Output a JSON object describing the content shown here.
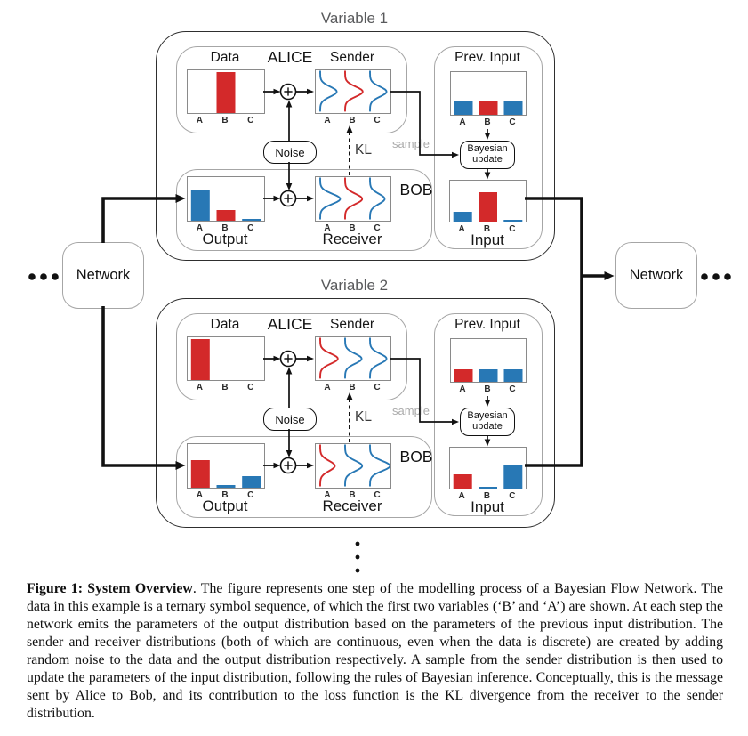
{
  "figure": {
    "variables": [
      {
        "title": "Variable 1",
        "alice_label": "ALICE",
        "bob_label": "BOB",
        "noise_label": "Noise",
        "kl_label": "KL",
        "sample_label": "sample",
        "bayes_label_line1": "Bayesian",
        "bayes_label_line2": "update",
        "data_chart": {
          "title": "Data",
          "categories": [
            "A",
            "B",
            "C"
          ],
          "values": [
            0,
            1,
            0
          ],
          "colors": [
            "blue",
            "red",
            "blue"
          ]
        },
        "sender_chart": {
          "title": "Sender",
          "categories": [
            "A",
            "B",
            "C"
          ],
          "curve_colors": [
            "blue",
            "red",
            "blue"
          ],
          "curve_amps": [
            0.62,
            0.66,
            0.62
          ]
        },
        "prev_input_chart": {
          "title": "Prev. Input",
          "categories": [
            "A",
            "B",
            "C"
          ],
          "values": [
            0.32,
            0.32,
            0.32
          ],
          "colors": [
            "blue",
            "red",
            "blue"
          ]
        },
        "output_chart": {
          "title": "Output",
          "categories": [
            "A",
            "B",
            "C"
          ],
          "values": [
            0.72,
            0.25,
            0.04
          ],
          "colors": [
            "blue",
            "red",
            "blue"
          ]
        },
        "receiver_chart": {
          "title": "Receiver",
          "categories": [
            "A",
            "B",
            "C"
          ],
          "curve_colors": [
            "blue",
            "red",
            "blue"
          ],
          "curve_amps": [
            0.75,
            0.64,
            0.55
          ]
        },
        "input_chart": {
          "title": "Input",
          "categories": [
            "A",
            "B",
            "C"
          ],
          "values": [
            0.26,
            0.75,
            0.05
          ],
          "colors": [
            "blue",
            "red",
            "blue"
          ]
        }
      },
      {
        "title": "Variable 2",
        "alice_label": "ALICE",
        "bob_label": "BOB",
        "noise_label": "Noise",
        "kl_label": "KL",
        "sample_label": "sample",
        "bayes_label_line1": "Bayesian",
        "bayes_label_line2": "update",
        "data_chart": {
          "title": "Data",
          "categories": [
            "A",
            "B",
            "C"
          ],
          "values": [
            1,
            0,
            0
          ],
          "colors": [
            "red",
            "blue",
            "blue"
          ]
        },
        "sender_chart": {
          "title": "Sender",
          "categories": [
            "A",
            "B",
            "C"
          ],
          "curve_colors": [
            "red",
            "blue",
            "blue"
          ],
          "curve_amps": [
            0.66,
            0.62,
            0.62
          ]
        },
        "prev_input_chart": {
          "title": "Prev. Input",
          "categories": [
            "A",
            "B",
            "C"
          ],
          "values": [
            0.3,
            0.3,
            0.3
          ],
          "colors": [
            "red",
            "blue",
            "blue"
          ]
        },
        "output_chart": {
          "title": "Output",
          "categories": [
            "A",
            "B",
            "C"
          ],
          "values": [
            0.66,
            0.06,
            0.27
          ],
          "colors": [
            "red",
            "blue",
            "blue"
          ]
        },
        "receiver_chart": {
          "title": "Receiver",
          "categories": [
            "A",
            "B",
            "C"
          ],
          "curve_colors": [
            "red",
            "blue",
            "blue"
          ],
          "curve_amps": [
            0.55,
            0.64,
            0.75
          ]
        },
        "input_chart": {
          "title": "Input",
          "categories": [
            "A",
            "B",
            "C"
          ],
          "values": [
            0.36,
            0.05,
            0.62
          ],
          "colors": [
            "red",
            "blue",
            "blue"
          ]
        }
      }
    ],
    "network_left_label": "Network",
    "network_right_label": "Network",
    "ellipsis": "•••"
  },
  "caption": {
    "label": "Figure 1: System Overview",
    "body": ". The figure represents one step of the modelling process of a Bayesian Flow Network. The data in this example is a ternary symbol sequence, of which the first two variables (‘B’ and ‘A’) are shown. At each step the network emits the parameters of the output distribution based on the parameters of the previous input distribution. The sender and receiver distributions (both of which are continuous, even when the data is discrete) are created by adding random noise to the data and the output distribution respectively. A sample from the sender distribution is then used to update the parameters of the input distribution, following the rules of Bayesian inference. Conceptually, this is the message sent by Alice to Bob, and its contribution to the loss function is the KL divergence from the receiver to the sender distribution."
  },
  "colors": {
    "red": "#d3292a",
    "blue": "#2878b5",
    "line": "#111111",
    "box_gray": "#a6a6a6",
    "title_gray": "#595a5c",
    "sample_gray": "#ababab"
  }
}
